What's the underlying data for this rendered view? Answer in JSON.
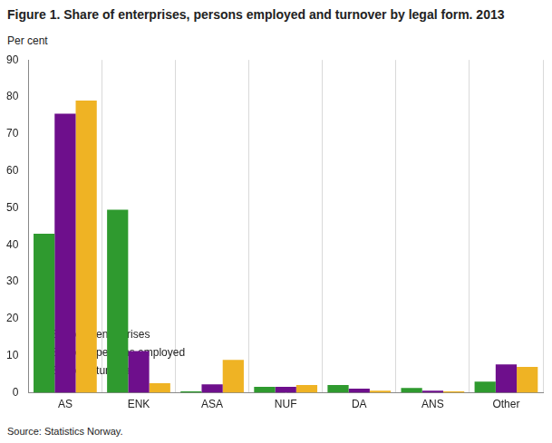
{
  "chart_data": {
    "type": "bar",
    "title": "Figure 1. Share of enterprises, persons employed and turnover by legal form. 2013",
    "y_label": "Per cent",
    "source": "Source: Statistics Norway.",
    "categories": [
      "AS",
      "ENK",
      "ASA",
      "NUF",
      "DA",
      "ANS",
      "Other"
    ],
    "series": [
      {
        "name": "Share of enterprises",
        "color": "#2f9a2f",
        "values": [
          43,
          49.5,
          0.4,
          1.6,
          2.1,
          1.3,
          3.0
        ]
      },
      {
        "name": "Share of persons employed",
        "color": "#6e0f8c",
        "values": [
          75.5,
          11.3,
          2.3,
          1.6,
          1.1,
          0.6,
          7.7
        ]
      },
      {
        "name": "Share of turnover",
        "color": "#efb324",
        "values": [
          79,
          2.6,
          8.9,
          2.1,
          0.6,
          0.4,
          7.0
        ]
      }
    ],
    "ylim": [
      0,
      90
    ],
    "yticks": [
      0,
      10,
      20,
      30,
      40,
      50,
      60,
      70,
      80,
      90
    ],
    "grid": "x",
    "legend": "top-right"
  }
}
